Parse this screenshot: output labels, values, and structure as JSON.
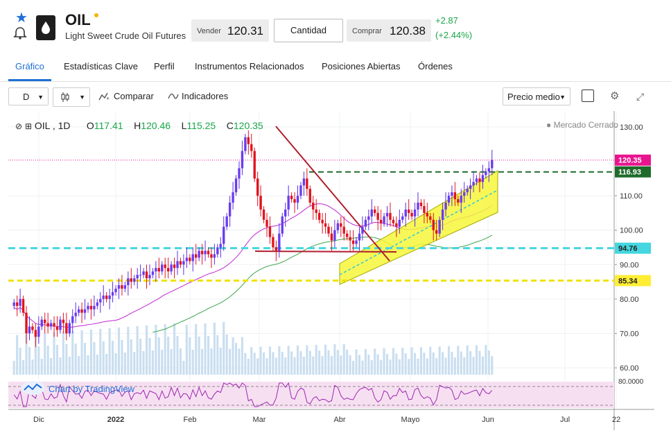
{
  "header": {
    "symbol": "OIL",
    "subtitle": "Light Sweet Crude Oil Futures",
    "sell_label": "Vender",
    "sell_price": "120.31",
    "quantity_label": "Cantidad",
    "buy_label": "Comprar",
    "buy_price": "120.38",
    "change_abs": "+2.87",
    "change_pct": "(+2.44%)",
    "colors": {
      "accent": "#1f6fd6",
      "up": "#1aa64a",
      "status_dot": "#f5b400"
    },
    "icons": [
      "star-icon",
      "bell-icon",
      "oil-drop-logo-icon"
    ]
  },
  "tabs": [
    {
      "label": "Gráfico",
      "active": true
    },
    {
      "label": "Estadísticas Clave",
      "active": false
    },
    {
      "label": "Perfil",
      "active": false
    },
    {
      "label": "Instrumentos Relacionados",
      "active": false
    },
    {
      "label": "Posiciones Abiertas",
      "active": false
    },
    {
      "label": "Órdenes",
      "active": false
    }
  ],
  "toolbar": {
    "interval": "D",
    "compare_label": "Comparar",
    "indicators_label": "Indicadores",
    "price_mode": "Precio medio",
    "icons": [
      "candlestick-icon",
      "compare-icon",
      "indicators-icon",
      "settings-icon",
      "fullscreen-icon"
    ]
  },
  "legend": {
    "symbol": "OIL",
    "interval": "1D",
    "open_label": "O",
    "open": "117.41",
    "high_label": "H",
    "high": "120.46",
    "low_label": "L",
    "low": "115.25",
    "close_label": "C",
    "close": "120.35",
    "status": "Mercado Cerrado"
  },
  "watermark": "Chart by TradingView",
  "chart_data": {
    "type": "candlestick",
    "x_labels": [
      "Dic",
      "2022",
      "Feb",
      "Mar",
      "Abr",
      "Mayo",
      "Jun",
      "Jul",
      "22"
    ],
    "y_ticks": [
      "130.00",
      "110.00",
      "100.00",
      "90.00",
      "80.00",
      "70.00",
      "60.00"
    ],
    "ylim": [
      58,
      133
    ],
    "price_labels": [
      {
        "text": "120.35",
        "value": 120.35,
        "color": "#e8158f",
        "text_color": "#ffffff"
      },
      {
        "text": "116.93",
        "value": 116.93,
        "color": "#1e6b2a",
        "text_color": "#ffffff"
      },
      {
        "text": "94.76",
        "value": 94.76,
        "color": "#45d6e0",
        "text_color": "#222222"
      },
      {
        "text": "85.34",
        "value": 85.34,
        "color": "#ffee33",
        "text_color": "#222222"
      }
    ],
    "closes": [
      79,
      78,
      80,
      76,
      70,
      72,
      71,
      69,
      72,
      74,
      73,
      72,
      73,
      72,
      71,
      74,
      73,
      70,
      73,
      75,
      76,
      77,
      76,
      77,
      78,
      77,
      78,
      79,
      80,
      81,
      80,
      81,
      82,
      83,
      84,
      83,
      84,
      86,
      85,
      86,
      87,
      87,
      88,
      86,
      87,
      88,
      89,
      88,
      90,
      89,
      88,
      90,
      89,
      91,
      90,
      91,
      92,
      91,
      93,
      92,
      94,
      93,
      94,
      93,
      92,
      93,
      95,
      96,
      101,
      104,
      108,
      111,
      115,
      118,
      123,
      127,
      125,
      123,
      115,
      110,
      106,
      103,
      101,
      98,
      95,
      94,
      99,
      104,
      106,
      110,
      109,
      108,
      110,
      113,
      115,
      112,
      108,
      106,
      105,
      103,
      102,
      101,
      99,
      97,
      100,
      102,
      101,
      99,
      98,
      97,
      96,
      97,
      99,
      101,
      103,
      104,
      106,
      105,
      103,
      102,
      104,
      105,
      103,
      102,
      101,
      103,
      104,
      106,
      105,
      104,
      106,
      108,
      107,
      105,
      104,
      103,
      100,
      99,
      103,
      106,
      108,
      110,
      111,
      109,
      108,
      110,
      111,
      112,
      113,
      114,
      115,
      114,
      116,
      117,
      118,
      120.35
    ],
    "rsi_ref": "80.0000"
  }
}
